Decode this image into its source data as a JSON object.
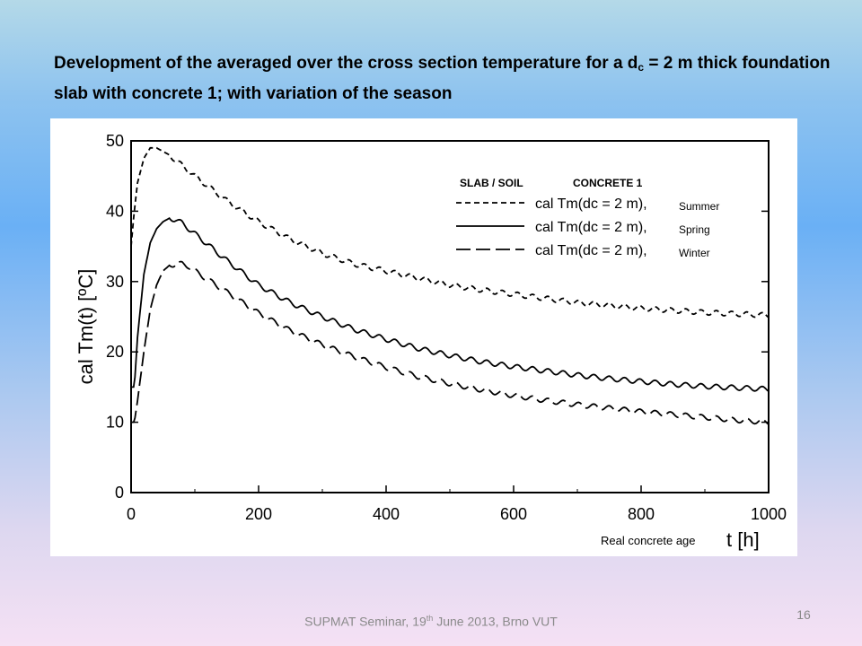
{
  "slide": {
    "title_part1": "Development of the averaged over the cross section temperature for a d",
    "title_sub": "c",
    "title_part2": " = 2 m thick foundation slab with concrete 1; with variation of the season",
    "footer_part1": "SUPMAT Seminar, 19",
    "footer_sup": "th",
    "footer_part2": " June 2013, Brno VUT",
    "page_number": "16"
  },
  "chart_data": {
    "type": "line",
    "ylabel": "cal Tm(t)  [ºC]",
    "xlabel": "t  [h]",
    "xlabel_note": "Real concrete age",
    "xlim": [
      0,
      1000
    ],
    "ylim": [
      0,
      50
    ],
    "xticks": [
      "0",
      "200",
      "400",
      "600",
      "800",
      "1000"
    ],
    "yticks": [
      "0",
      "10",
      "20",
      "30",
      "40",
      "50"
    ],
    "legend_position": "top-right",
    "legend_headers": [
      "SLAB / SOIL",
      "CONCRETE 1"
    ],
    "series": [
      {
        "name": "cal Tm(dc = 2 m),",
        "season": "Summer",
        "dash": "short",
        "x": [
          0,
          5,
          10,
          20,
          30,
          40,
          50,
          60,
          80,
          100,
          150,
          200,
          250,
          300,
          350,
          400,
          450,
          500,
          550,
          600,
          650,
          700,
          750,
          800,
          850,
          900,
          950,
          1000
        ],
        "y": [
          35,
          40,
          44,
          47.5,
          49,
          49,
          48.5,
          48,
          46.5,
          45,
          41.5,
          38.5,
          36,
          34,
          32.5,
          31.5,
          30.5,
          29.5,
          28.8,
          28.2,
          27.6,
          27,
          26.6,
          26.2,
          25.9,
          25.6,
          25.4,
          25.2
        ]
      },
      {
        "name": "cal Tm(dc = 2 m),",
        "season": "Spring",
        "dash": "solid",
        "x": [
          0,
          5,
          10,
          20,
          30,
          40,
          50,
          60,
          70,
          80,
          100,
          150,
          200,
          250,
          300,
          350,
          400,
          450,
          500,
          550,
          600,
          650,
          700,
          750,
          800,
          850,
          900,
          950,
          1000
        ],
        "y": [
          15,
          15,
          22,
          31,
          35.5,
          37.5,
          38.5,
          39,
          38.8,
          38.3,
          36.8,
          33,
          29.5,
          27,
          25,
          23.2,
          21.8,
          20.5,
          19.5,
          18.6,
          17.9,
          17.3,
          16.7,
          16.2,
          15.8,
          15.4,
          15.1,
          14.9,
          14.7
        ]
      },
      {
        "name": "cal Tm(dc = 2 m),",
        "season": "Winter",
        "dash": "long",
        "x": [
          0,
          5,
          10,
          20,
          30,
          40,
          50,
          60,
          70,
          80,
          90,
          100,
          150,
          200,
          250,
          300,
          350,
          400,
          450,
          500,
          550,
          600,
          650,
          700,
          750,
          800,
          850,
          900,
          950,
          1000
        ],
        "y": [
          10,
          10,
          13,
          20,
          26,
          29.5,
          31.5,
          32.3,
          32.5,
          32.5,
          32.2,
          31.5,
          28.5,
          25.5,
          23,
          21,
          19.3,
          17.8,
          16.5,
          15.5,
          14.6,
          13.8,
          13.1,
          12.5,
          12,
          11.5,
          11.1,
          10.7,
          10.3,
          10
        ]
      }
    ]
  },
  "colors": {
    "line": "#000000",
    "figure_bg": "#ffffff"
  }
}
